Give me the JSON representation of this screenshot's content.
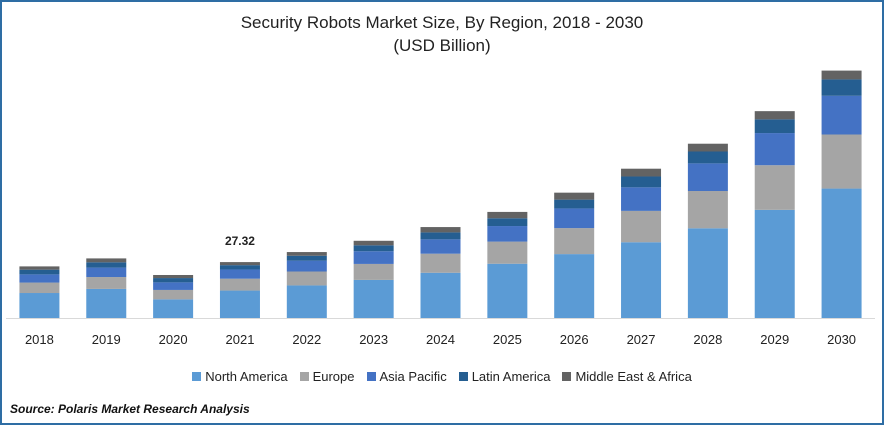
{
  "chart_data": {
    "type": "bar",
    "stacked": true,
    "title": "Security Robots Market Size, By Region, 2018 - 2030",
    "subtitle": "(USD Billion)",
    "categories": [
      "2018",
      "2019",
      "2020",
      "2021",
      "2022",
      "2023",
      "2024",
      "2025",
      "2026",
      "2027",
      "2028",
      "2029",
      "2030"
    ],
    "series": [
      {
        "name": "North America",
        "color": "#5b9bd5",
        "values": [
          12.2,
          14.2,
          9.1,
          13.4,
          15.9,
          18.6,
          22.1,
          26.5,
          31.2,
          37.0,
          43.8,
          52.8,
          63.2
        ]
      },
      {
        "name": "Europe",
        "color": "#a5a5a5",
        "values": [
          5.1,
          5.8,
          4.6,
          5.8,
          6.8,
          7.8,
          9.3,
          10.8,
          12.7,
          15.3,
          18.2,
          21.8,
          26.4
        ]
      },
      {
        "name": "Asia Pacific",
        "color": "#4472c4",
        "values": [
          4.0,
          4.6,
          3.7,
          4.5,
          5.3,
          6.2,
          7.0,
          7.6,
          9.6,
          11.5,
          13.5,
          15.7,
          18.9
        ]
      },
      {
        "name": "Latin America",
        "color": "#255e91",
        "values": [
          2.3,
          2.6,
          2.1,
          2.1,
          2.4,
          2.9,
          3.4,
          3.8,
          4.3,
          5.3,
          5.8,
          6.7,
          8.0
        ]
      },
      {
        "name": "Middle East & Africa",
        "color": "#636363",
        "values": [
          1.6,
          1.9,
          1.5,
          1.5,
          1.8,
          2.2,
          2.6,
          3.1,
          3.4,
          3.8,
          3.8,
          4.0,
          4.3
        ]
      }
    ],
    "annotations": [
      {
        "category": "2021",
        "label": "27.32"
      }
    ],
    "ylim": [
      0,
      125
    ],
    "xlabel": "",
    "ylabel": "",
    "legend_position": "bottom"
  },
  "source": "Source: Polaris  Market Research Analysis"
}
